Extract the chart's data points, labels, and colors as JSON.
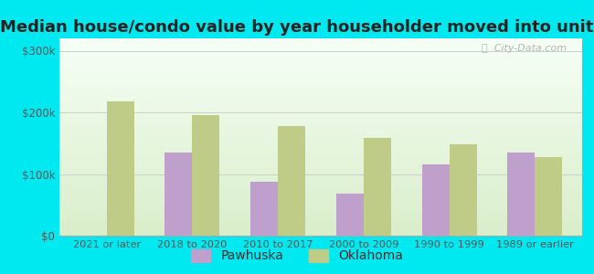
{
  "title": "Median house/condo value by year householder moved into unit",
  "categories": [
    "2021 or later",
    "2018 to 2020",
    "2010 to 2017",
    "2000 to 2009",
    "1990 to 1999",
    "1989 or earlier"
  ],
  "pawhuska_values": [
    null,
    135000,
    88000,
    68000,
    115000,
    135000
  ],
  "oklahoma_values": [
    218000,
    195000,
    178000,
    158000,
    148000,
    128000
  ],
  "pawhuska_color": "#bf9fcc",
  "oklahoma_color": "#bfcc88",
  "background_outer": "#00e8f0",
  "yticks": [
    0,
    100000,
    200000,
    300000
  ],
  "ytick_labels": [
    "$0",
    "$100k",
    "$200k",
    "$300k"
  ],
  "ylim": [
    0,
    320000
  ],
  "bar_width": 0.32,
  "title_fontsize": 13,
  "watermark": "ⓘ  City-Data.com"
}
